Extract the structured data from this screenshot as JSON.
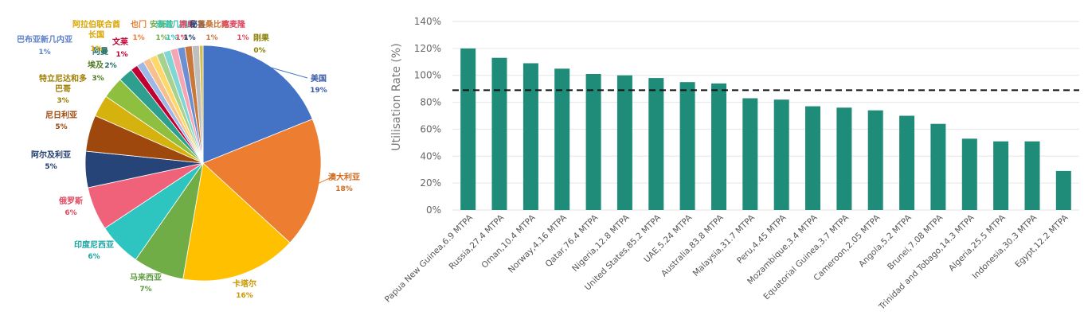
{
  "chart_data": [
    {
      "type": "pie",
      "title": "",
      "slices": [
        {
          "label": "美国",
          "pct_label": "19%",
          "value": 19,
          "color": "#4472C4",
          "text_color": "#3b5ba8"
        },
        {
          "label": "澳大利亚",
          "pct_label": "18%",
          "value": 18,
          "color": "#ED7D31",
          "text_color": "#d06a1e"
        },
        {
          "label": "卡塔尔",
          "pct_label": "16%",
          "value": 16,
          "color": "#FFC000",
          "text_color": "#c89a00"
        },
        {
          "label": "马来西亚",
          "pct_label": "7%",
          "value": 7,
          "color": "#70AD47",
          "text_color": "#5a9a3a"
        },
        {
          "label": "印度尼西亚",
          "pct_label": "6%",
          "value": 6,
          "color": "#2EC4C0",
          "text_color": "#1aa6a3"
        },
        {
          "label": "俄罗斯",
          "pct_label": "6%",
          "value": 6,
          "color": "#F0627A",
          "text_color": "#e0485f"
        },
        {
          "label": "阿尔及利亚",
          "pct_label": "5%",
          "value": 5,
          "color": "#264478",
          "text_color": "#1f3c6e"
        },
        {
          "label": "尼日利亚",
          "pct_label": "5%",
          "value": 5,
          "color": "#9E480E",
          "text_color": "#9e480e"
        },
        {
          "label": "特立尼达和多巴哥",
          "pct_label": "3%",
          "value": 3,
          "color": "#D6B20F",
          "text_color": "#9c7d00"
        },
        {
          "label": "埃及",
          "pct_label": "3%",
          "value": 3,
          "color": "#8FBF3F",
          "text_color": "#4f7a1f"
        },
        {
          "label": "阿曼",
          "pct_label": "2%",
          "value": 2,
          "color": "#2E9E8F",
          "text_color": "#1f6b63"
        },
        {
          "label": "文莱",
          "pct_label": "1%",
          "value": 1,
          "color": "#C00030",
          "text_color": "#c00030"
        },
        {
          "label": "巴布亚新几内亚",
          "pct_label": "1%",
          "value": 1,
          "color": "#9DB7E6",
          "text_color": "#5b7fc9"
        },
        {
          "label": "阿拉伯联合酋长国",
          "pct_label": "1%",
          "value": 1,
          "color": "#F5C08E",
          "text_color": "#d9a400"
        },
        {
          "label": "也门",
          "pct_label": "1%",
          "value": 1,
          "color": "#FFD86B",
          "text_color": "#ed7d31"
        },
        {
          "label": "安哥拉",
          "pct_label": "1%",
          "value": 1,
          "color": "#A9D18E",
          "text_color": "#70ad47"
        },
        {
          "label": "赤道几内亚",
          "pct_label": "1%",
          "value": 1,
          "color": "#7FD6D4",
          "text_color": "#2ec4c0"
        },
        {
          "label": "挪威",
          "pct_label": "1%",
          "value": 1,
          "color": "#F4A6B4",
          "text_color": "#e0485f"
        },
        {
          "label": "秘鲁",
          "pct_label": "1%",
          "value": 1,
          "color": "#6B8FD0",
          "text_color": "#264478"
        },
        {
          "label": "莫桑比克",
          "pct_label": "1%",
          "value": 1,
          "color": "#C9773A",
          "text_color": "#c9773a"
        },
        {
          "label": "喀麦隆",
          "pct_label": "1%",
          "value": 1,
          "color": "#BFBFBF",
          "text_color": "#e0485f"
        },
        {
          "label": "刚果",
          "pct_label": "0%",
          "value": 0.5,
          "color": "#D4C04A",
          "text_color": "#8a8000"
        }
      ]
    },
    {
      "type": "bar",
      "title": "",
      "ylabel": "Utilisation Rate (%)",
      "ylim": [
        0,
        140
      ],
      "yticks": [
        "0%",
        "20%",
        "40%",
        "60%",
        "80%",
        "100%",
        "120%",
        "140%"
      ],
      "reference_line": 89,
      "bar_color": "#1F8C79",
      "categories": [
        "Papua New Guinea,6.9 MTPA",
        "Russia,27.4 MTPA",
        "Oman,10.4 MTPA",
        "Norway,4.16 MTPA",
        "Qatar,76.4 MTPA",
        "Nigeria,12.8 MTPA",
        "United States,85.2 MTPA",
        "UAE,5.24 MTPA",
        "Australia,83.8 MTPA",
        "Malaysia,31.7 MTPA",
        "Peru,4.45 MTPA",
        "Mozambique,3.4 MTPA",
        "Equatorial Guinea,3.7 MTPA",
        "Cameroon,2.05 MTPA",
        "Angola,5.2 MTPA",
        "Brunei,7.08 MTPA",
        "Trinidad and Tobago,14.3 MTPA",
        "Algeria,25.5 MTPA",
        "Indonesia,30.3 MTPA",
        "Egypt,12.2 MTPA"
      ],
      "values": [
        120,
        113,
        109,
        105,
        101,
        100,
        98,
        95,
        94,
        83,
        82,
        77,
        76,
        74,
        70,
        64,
        53,
        51,
        51,
        29
      ]
    }
  ]
}
